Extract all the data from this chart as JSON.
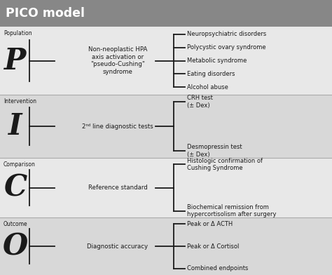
{
  "title": "PICO model",
  "title_bg": "#878787",
  "title_color": "#ffffff",
  "bg_color": "#c8c8c8",
  "line_color": "#1a1a1a",
  "text_color": "#1a1a1a",
  "rows": [
    {
      "label": "Population",
      "letter": "P",
      "middle_text": "Non-neoplastic HPA\naxis activation or\n\"pseudo-Cushing\"\nsyndrome",
      "end_items": [
        "Neuropsychiatric disorders",
        "Polycystic ovary syndrome",
        "Metabolic syndrome",
        "Eating disorders",
        "Alcohol abuse"
      ],
      "bg": "#e8e8e8"
    },
    {
      "label": "Intervention",
      "letter": "I",
      "middle_text": "2ⁿᵈ line diagnostic tests",
      "end_items": [
        "CRH test\n(± Dex)",
        "Desmopressin test\n(± Dex)"
      ],
      "bg": "#d8d8d8"
    },
    {
      "label": "Comparison",
      "letter": "C",
      "middle_text": "Reference standard",
      "end_items": [
        "Histologic confirmation of\nCushing Syndrome",
        "Biochemical remission from\nhypercortisolism after surgery"
      ],
      "bg": "#e8e8e8"
    },
    {
      "label": "Outcome",
      "letter": "O",
      "middle_text": "Diagnostic accuracy",
      "end_items": [
        "Peak or Δ ACTH",
        "Peak or Δ Cortisol",
        "Combined endpoints"
      ],
      "bg": "#d8d8d8"
    }
  ]
}
